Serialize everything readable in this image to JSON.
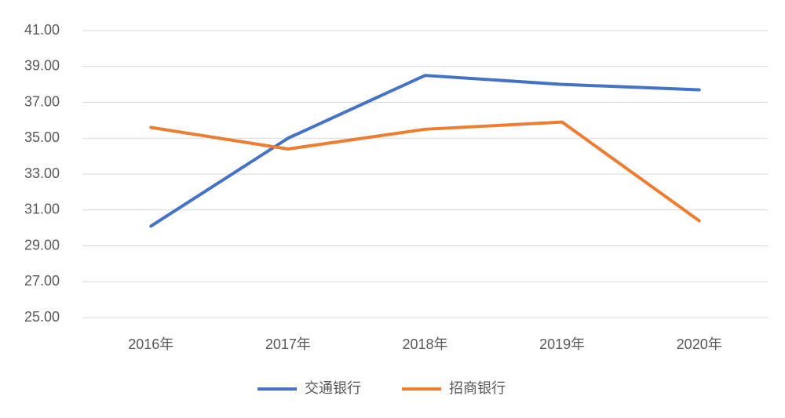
{
  "chart_data": {
    "type": "line",
    "categories": [
      "2016年",
      "2017年",
      "2018年",
      "2019年",
      "2020年"
    ],
    "series": [
      {
        "name": "交通银行",
        "color": "#4472c4",
        "values": [
          30.1,
          35.0,
          38.5,
          38.0,
          37.7
        ]
      },
      {
        "name": "招商银行",
        "color": "#ed7d31",
        "values": [
          35.6,
          34.4,
          35.5,
          35.9,
          30.4
        ]
      }
    ],
    "ylim": [
      25,
      41
    ],
    "yticks": [
      {
        "value": 25,
        "label": "25.00"
      },
      {
        "value": 27,
        "label": "27.00"
      },
      {
        "value": 29,
        "label": "29.00"
      },
      {
        "value": 31,
        "label": "31.00"
      },
      {
        "value": 33,
        "label": "33.00"
      },
      {
        "value": 35,
        "label": "35.00"
      },
      {
        "value": 37,
        "label": "37.00"
      },
      {
        "value": 39,
        "label": "39.00"
      },
      {
        "value": 41,
        "label": "41.00"
      }
    ],
    "grid": true,
    "legend": "bottom"
  }
}
